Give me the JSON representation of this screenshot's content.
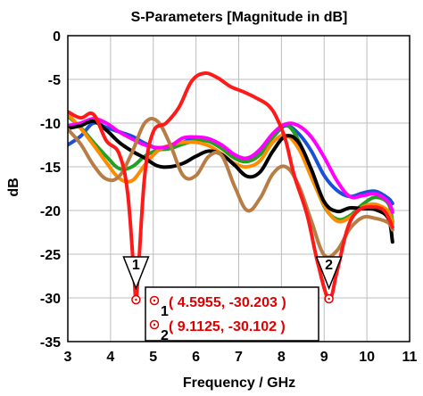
{
  "chart_data": {
    "type": "line",
    "title": "S-Parameters [Magnitude in dB]",
    "xlabel": "Frequency / GHz",
    "ylabel": "dB",
    "xlim": [
      3,
      11
    ],
    "ylim": [
      -35,
      0
    ],
    "xticks": [
      "3",
      "4",
      "5",
      "6",
      "7",
      "8",
      "9",
      "10",
      "11"
    ],
    "yticks": [
      "0",
      "-5",
      "-10",
      "-15",
      "-20",
      "-25",
      "-30",
      "-35"
    ],
    "grid": true,
    "legend": "none",
    "series": [
      {
        "color": "#1a4fd6",
        "points": [
          [
            3.0,
            -12.5
          ],
          [
            3.3,
            -11.5
          ],
          [
            3.6,
            -10.0
          ],
          [
            3.9,
            -10.5
          ],
          [
            4.2,
            -11.0
          ],
          [
            4.5,
            -11.5
          ],
          [
            4.8,
            -12.3
          ],
          [
            5.1,
            -12.9
          ],
          [
            5.4,
            -12.9
          ],
          [
            5.7,
            -12.2
          ],
          [
            6.0,
            -11.7
          ],
          [
            6.3,
            -11.8
          ],
          [
            6.6,
            -12.6
          ],
          [
            6.9,
            -13.8
          ],
          [
            7.2,
            -14.2
          ],
          [
            7.5,
            -13.2
          ],
          [
            7.8,
            -11.6
          ],
          [
            8.1,
            -10.3
          ],
          [
            8.4,
            -11.2
          ],
          [
            8.7,
            -13.2
          ],
          [
            9.0,
            -16.0
          ],
          [
            9.3,
            -17.7
          ],
          [
            9.6,
            -18.4
          ],
          [
            9.9,
            -18.0
          ],
          [
            10.2,
            -17.8
          ],
          [
            10.5,
            -18.6
          ],
          [
            10.6,
            -19.2
          ]
        ]
      },
      {
        "color": "#22a022",
        "points": [
          [
            3.0,
            -9.2
          ],
          [
            3.3,
            -10.5
          ],
          [
            3.6,
            -12.2
          ],
          [
            3.9,
            -13.8
          ],
          [
            4.2,
            -15.2
          ],
          [
            4.5,
            -15.0
          ],
          [
            4.8,
            -13.8
          ],
          [
            5.1,
            -13.1
          ],
          [
            5.4,
            -12.9
          ],
          [
            5.7,
            -12.4
          ],
          [
            6.0,
            -12.0
          ],
          [
            6.3,
            -12.1
          ],
          [
            6.6,
            -12.9
          ],
          [
            6.9,
            -14.0
          ],
          [
            7.2,
            -14.4
          ],
          [
            7.5,
            -13.6
          ],
          [
            7.8,
            -11.6
          ],
          [
            8.1,
            -10.2
          ],
          [
            8.4,
            -12.0
          ],
          [
            8.7,
            -15.8
          ],
          [
            9.0,
            -19.5
          ],
          [
            9.3,
            -21.0
          ],
          [
            9.6,
            -20.6
          ],
          [
            9.9,
            -19.3
          ],
          [
            10.2,
            -18.5
          ],
          [
            10.5,
            -19.2
          ],
          [
            10.6,
            -21.3
          ]
        ]
      },
      {
        "color": "#ff8c00",
        "points": [
          [
            3.0,
            -9.0
          ],
          [
            3.3,
            -10.6
          ],
          [
            3.6,
            -12.5
          ],
          [
            3.9,
            -14.5
          ],
          [
            4.2,
            -16.3
          ],
          [
            4.5,
            -16.6
          ],
          [
            4.8,
            -14.8
          ],
          [
            5.1,
            -13.2
          ],
          [
            5.4,
            -12.5
          ],
          [
            5.7,
            -12.2
          ],
          [
            6.0,
            -12.2
          ],
          [
            6.3,
            -12.6
          ],
          [
            6.6,
            -13.5
          ],
          [
            6.9,
            -14.6
          ],
          [
            7.2,
            -15.0
          ],
          [
            7.5,
            -14.3
          ],
          [
            7.8,
            -12.2
          ],
          [
            8.1,
            -11.4
          ],
          [
            8.4,
            -12.9
          ],
          [
            8.7,
            -16.2
          ],
          [
            9.0,
            -19.4
          ],
          [
            9.3,
            -21.2
          ],
          [
            9.6,
            -20.8
          ],
          [
            9.9,
            -19.6
          ],
          [
            10.2,
            -19.3
          ],
          [
            10.5,
            -20.1
          ],
          [
            10.6,
            -21.5
          ]
        ]
      },
      {
        "color": "#ff00ff",
        "points": [
          [
            3.0,
            -10.3
          ],
          [
            3.3,
            -10.0
          ],
          [
            3.6,
            -9.5
          ],
          [
            3.9,
            -10.0
          ],
          [
            4.2,
            -11.0
          ],
          [
            4.5,
            -11.8
          ],
          [
            4.8,
            -12.5
          ],
          [
            5.1,
            -12.8
          ],
          [
            5.4,
            -12.6
          ],
          [
            5.7,
            -11.7
          ],
          [
            6.0,
            -11.6
          ],
          [
            6.3,
            -11.8
          ],
          [
            6.6,
            -12.5
          ],
          [
            6.9,
            -13.6
          ],
          [
            7.2,
            -14.0
          ],
          [
            7.5,
            -13.0
          ],
          [
            7.8,
            -11.2
          ],
          [
            8.1,
            -10.1
          ],
          [
            8.4,
            -10.3
          ],
          [
            8.7,
            -11.6
          ],
          [
            9.0,
            -13.9
          ],
          [
            9.3,
            -16.6
          ],
          [
            9.6,
            -18.4
          ],
          [
            9.9,
            -18.3
          ],
          [
            10.2,
            -18.1
          ],
          [
            10.5,
            -19.0
          ],
          [
            10.6,
            -20.2
          ]
        ]
      },
      {
        "color": "#000000",
        "points": [
          [
            3.0,
            -10.6
          ],
          [
            3.3,
            -10.3
          ],
          [
            3.6,
            -9.8
          ],
          [
            3.9,
            -10.8
          ],
          [
            4.2,
            -12.2
          ],
          [
            4.5,
            -13.2
          ],
          [
            4.8,
            -14.0
          ],
          [
            5.1,
            -14.9
          ],
          [
            5.4,
            -15.0
          ],
          [
            5.7,
            -14.6
          ],
          [
            6.0,
            -13.8
          ],
          [
            6.3,
            -13.2
          ],
          [
            6.6,
            -13.6
          ],
          [
            6.9,
            -14.8
          ],
          [
            7.2,
            -16.1
          ],
          [
            7.5,
            -15.6
          ],
          [
            7.8,
            -13.2
          ],
          [
            8.1,
            -11.5
          ],
          [
            8.4,
            -12.2
          ],
          [
            8.7,
            -15.3
          ],
          [
            9.0,
            -19.0
          ],
          [
            9.3,
            -20.1
          ],
          [
            9.6,
            -19.7
          ],
          [
            9.9,
            -19.8
          ],
          [
            10.2,
            -19.9
          ],
          [
            10.5,
            -20.9
          ],
          [
            10.6,
            -23.6
          ]
        ]
      },
      {
        "color": "#b87d45",
        "points": [
          [
            3.0,
            -10.7
          ],
          [
            3.3,
            -12.4
          ],
          [
            3.6,
            -14.8
          ],
          [
            3.9,
            -16.4
          ],
          [
            4.2,
            -16.1
          ],
          [
            4.5,
            -13.4
          ],
          [
            4.8,
            -10.0
          ],
          [
            5.1,
            -9.8
          ],
          [
            5.4,
            -12.5
          ],
          [
            5.7,
            -16.0
          ],
          [
            6.0,
            -16.0
          ],
          [
            6.3,
            -13.8
          ],
          [
            6.6,
            -13.7
          ],
          [
            6.9,
            -17.2
          ],
          [
            7.2,
            -20.0
          ],
          [
            7.5,
            -18.6
          ],
          [
            7.8,
            -15.8
          ],
          [
            8.1,
            -15.0
          ],
          [
            8.4,
            -17.1
          ],
          [
            8.7,
            -21.2
          ],
          [
            9.0,
            -25.1
          ],
          [
            9.3,
            -24.6
          ],
          [
            9.6,
            -22.1
          ],
          [
            9.9,
            -20.8
          ],
          [
            10.2,
            -20.9
          ],
          [
            10.5,
            -21.4
          ],
          [
            10.6,
            -22.2
          ]
        ]
      },
      {
        "color": "#ff1a1a",
        "points": [
          [
            3.0,
            -8.7
          ],
          [
            3.3,
            -9.4
          ],
          [
            3.6,
            -9.0
          ],
          [
            3.9,
            -12.0
          ],
          [
            4.2,
            -13.5
          ],
          [
            4.4,
            -18.0
          ],
          [
            4.55,
            -27.5
          ],
          [
            4.5955,
            -30.203
          ],
          [
            4.65,
            -27.0
          ],
          [
            4.8,
            -16.0
          ],
          [
            5.0,
            -11.0
          ],
          [
            5.3,
            -10.0
          ],
          [
            5.6,
            -8.2
          ],
          [
            5.9,
            -5.2
          ],
          [
            6.2,
            -4.3
          ],
          [
            6.5,
            -4.8
          ],
          [
            6.8,
            -5.8
          ],
          [
            7.1,
            -6.4
          ],
          [
            7.4,
            -7.1
          ],
          [
            7.7,
            -8.0
          ],
          [
            7.9,
            -9.5
          ],
          [
            8.1,
            -12.0
          ],
          [
            8.3,
            -16.0
          ],
          [
            8.6,
            -20.5
          ],
          [
            8.85,
            -26.0
          ],
          [
            9.1125,
            -30.102
          ],
          [
            9.3,
            -27.0
          ],
          [
            9.55,
            -22.0
          ],
          [
            9.8,
            -20.0
          ],
          [
            10.1,
            -19.6
          ],
          [
            10.4,
            -20.0
          ],
          [
            10.6,
            -21.9
          ]
        ]
      }
    ],
    "markers": [
      {
        "label": "1",
        "x": 4.5955,
        "y": -30.203,
        "text": "( 4.5955, -30.203 )"
      },
      {
        "label": "2",
        "x": 9.1125,
        "y": -30.102,
        "text": "( 9.1125, -30.102 )"
      }
    ]
  }
}
